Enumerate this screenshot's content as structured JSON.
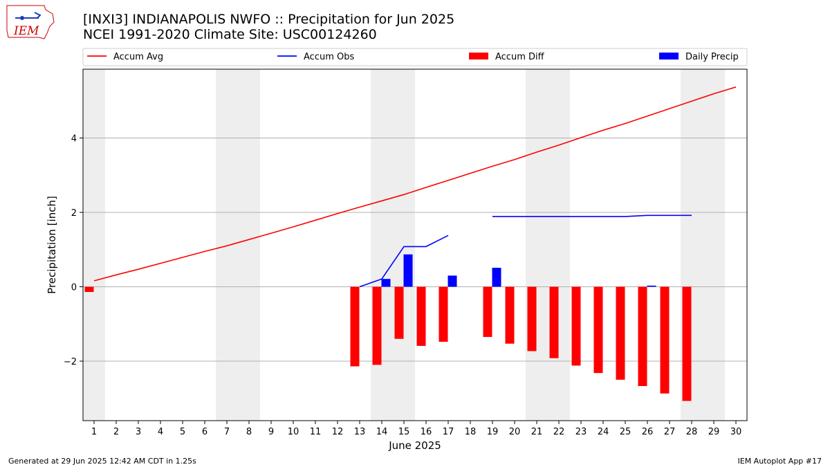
{
  "header": {
    "title_line1": "[INXI3] INDIANAPOLIS NWFO :: Precipitation for Jun 2025",
    "title_line2": "NCEI 1991-2020 Climate Site: USC00124260",
    "logo_text": "IEM"
  },
  "footer": {
    "generated": "Generated at 29 Jun 2025 12:42 AM CDT in 1.25s",
    "app": "IEM Autoplot App #17"
  },
  "colors": {
    "accum_avg": "#ff0000",
    "accum_obs": "#0000ff",
    "accum_diff": "#ff0000",
    "daily_precip": "#0000ff",
    "weekend_shade": "#eeeeee",
    "grid": "#b0b0b0"
  },
  "chart_data": {
    "type": "bar",
    "xlabel": "June 2025",
    "ylabel": "Precipitation [inch]",
    "ylim": [
      -3.6,
      5.85
    ],
    "yticks": [
      -2,
      0,
      2,
      4
    ],
    "ytick_labels": [
      "−2",
      "0",
      "2",
      "4"
    ],
    "days": [
      1,
      2,
      3,
      4,
      5,
      6,
      7,
      8,
      9,
      10,
      11,
      12,
      13,
      14,
      15,
      16,
      17,
      18,
      19,
      20,
      21,
      22,
      23,
      24,
      25,
      26,
      27,
      28,
      29,
      30
    ],
    "weekend_days": [
      1,
      7,
      8,
      14,
      15,
      21,
      22,
      28,
      29
    ],
    "legend": [
      "Accum Avg",
      "Accum Obs",
      "Accum Diff",
      "Daily Precip"
    ],
    "legend_position": "top, above plot",
    "grid": "horizontal",
    "series": [
      {
        "name": "Accum Avg",
        "kind": "line",
        "days": [
          1,
          2,
          3,
          4,
          5,
          6,
          7,
          8,
          9,
          10,
          11,
          12,
          13,
          14,
          15,
          16,
          17,
          18,
          19,
          20,
          21,
          22,
          23,
          24,
          25,
          26,
          27,
          28,
          29,
          30
        ],
        "values": [
          0.16,
          0.32,
          0.47,
          0.63,
          0.79,
          0.95,
          1.1,
          1.27,
          1.44,
          1.61,
          1.79,
          1.97,
          2.14,
          2.31,
          2.48,
          2.67,
          2.86,
          3.05,
          3.24,
          3.42,
          3.62,
          3.81,
          4.01,
          4.21,
          4.39,
          4.59,
          4.79,
          4.99,
          5.19,
          5.37
        ]
      },
      {
        "name": "Accum Obs",
        "kind": "line",
        "days": [
          13,
          14,
          15,
          16,
          17,
          18,
          19,
          20,
          21,
          22,
          23,
          24,
          25,
          26,
          27,
          28
        ],
        "values": [
          0.0,
          0.21,
          1.08,
          1.08,
          1.38,
          null,
          1.89,
          1.89,
          1.89,
          1.89,
          1.89,
          1.89,
          1.89,
          1.92,
          1.92,
          1.92
        ]
      },
      {
        "name": "Accum Diff",
        "kind": "bar",
        "days": [
          1,
          13,
          14,
          15,
          16,
          17,
          19,
          20,
          21,
          22,
          23,
          24,
          25,
          26,
          27,
          28
        ],
        "values": [
          -0.14,
          -2.14,
          -2.1,
          -1.4,
          -1.59,
          -1.48,
          -1.35,
          -1.53,
          -1.73,
          -1.92,
          -2.12,
          -2.32,
          -2.5,
          -2.67,
          -2.87,
          -3.07
        ]
      },
      {
        "name": "Daily Precip",
        "kind": "bar",
        "days": [
          14,
          15,
          17,
          19,
          26
        ],
        "values": [
          0.21,
          0.87,
          0.3,
          0.51,
          0.03
        ]
      }
    ]
  }
}
